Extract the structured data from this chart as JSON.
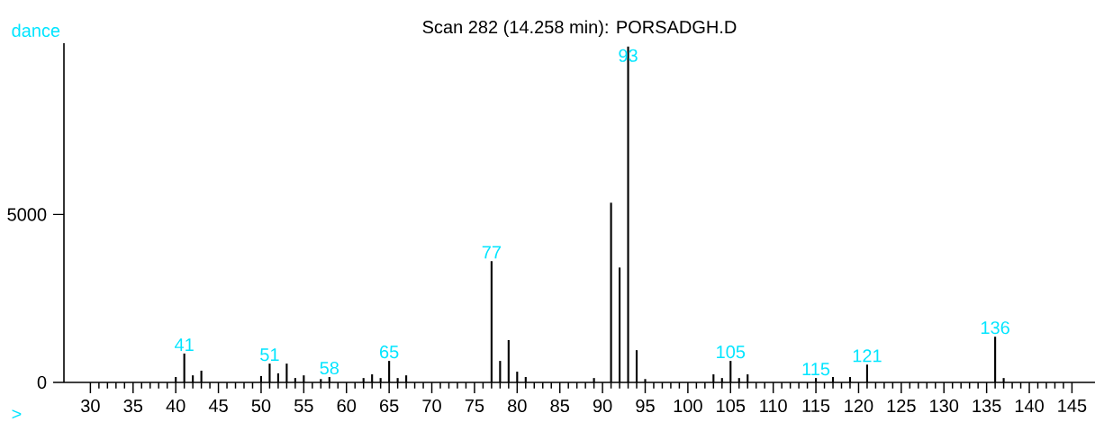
{
  "chart_data": {
    "type": "bar",
    "title": "Scan 282 (14.258 min): PORSADGH.D",
    "xlabel": ">",
    "ylabel": "dance",
    "x": [
      40,
      41,
      42,
      43,
      50,
      51,
      52,
      53,
      54,
      55,
      57,
      58,
      62,
      63,
      64,
      65,
      66,
      67,
      77,
      78,
      79,
      80,
      81,
      89,
      91,
      92,
      93,
      94,
      95,
      103,
      104,
      105,
      106,
      107,
      115,
      117,
      119,
      121,
      136,
      137
    ],
    "values": [
      160,
      860,
      210,
      350,
      190,
      560,
      270,
      560,
      130,
      210,
      100,
      160,
      130,
      240,
      130,
      640,
      130,
      210,
      3610,
      640,
      1260,
      320,
      160,
      130,
      5350,
      3420,
      10000,
      960,
      100,
      240,
      130,
      640,
      130,
      240,
      130,
      160,
      160,
      530,
      1360,
      130
    ],
    "color": "#000000",
    "xlim": [
      26.9,
      147.7
    ],
    "ylim": [
      0,
      10100
    ],
    "xticks": [
      30,
      35,
      40,
      45,
      50,
      55,
      60,
      65,
      70,
      75,
      80,
      85,
      90,
      95,
      100,
      105,
      110,
      115,
      120,
      125,
      130,
      135,
      140,
      145
    ],
    "yticks": [
      0,
      5000
    ],
    "annotations": [
      {
        "text": "41",
        "x": 41,
        "y": 860
      },
      {
        "text": "51",
        "x": 51,
        "y": 560
      },
      {
        "text": "58",
        "x": 58,
        "y": 160
      },
      {
        "text": "65",
        "x": 65,
        "y": 640
      },
      {
        "text": "77",
        "x": 77,
        "y": 3610
      },
      {
        "text": "93",
        "x": 93,
        "y": 10000
      },
      {
        "text": "105",
        "x": 105,
        "y": 640
      },
      {
        "text": "115",
        "x": 115,
        "y": 130
      },
      {
        "text": "121",
        "x": 121,
        "y": 530
      },
      {
        "text": "136",
        "x": 136,
        "y": 1360
      }
    ]
  }
}
